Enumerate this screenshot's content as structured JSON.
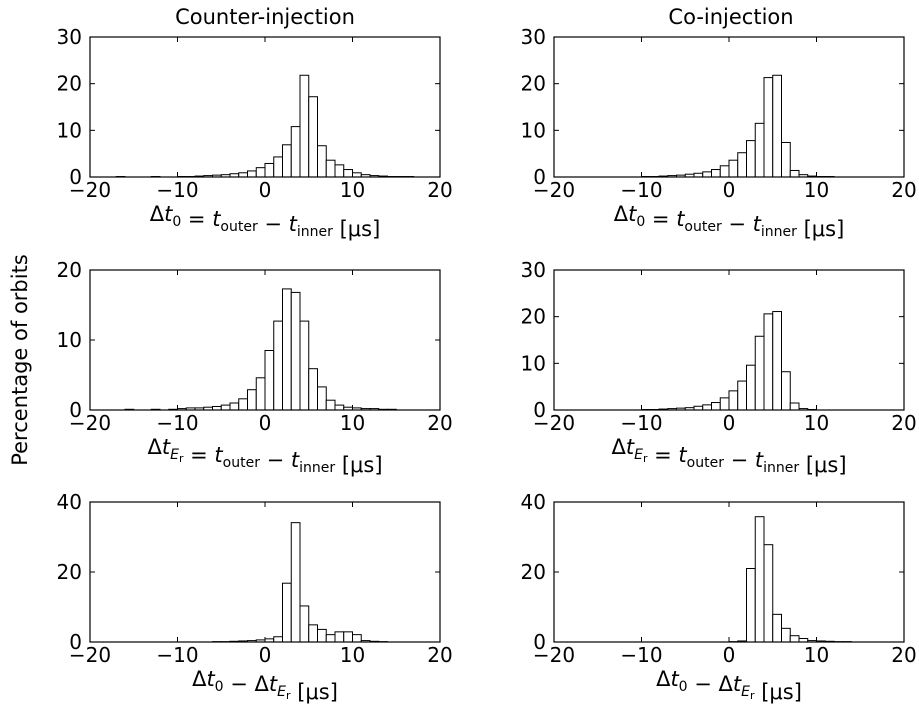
{
  "figure": {
    "ylabel": "Percentage of orbits",
    "col_titles": [
      "Counter-injection",
      "Co-injection"
    ]
  },
  "chart_data": [
    {
      "type": "bar",
      "panel": "row1-left",
      "title": "Counter-injection",
      "xlabel": "Δt0 = touter − tinner [μs]",
      "xlabel_parts": {
        "delta": "Δ",
        "t": "t",
        "t_sub": "0",
        "eq": " = ",
        "t1": "t",
        "t1_sub": "outer",
        "minus": " − ",
        "t2": "t",
        "t2_sub": "inner",
        "unit": " [μs]"
      },
      "xlim": [
        -20,
        20
      ],
      "ylim": [
        0,
        30
      ],
      "xticks": [
        "−20",
        "−10",
        "0",
        "10",
        "20"
      ],
      "yticks": [
        "0",
        "10",
        "20",
        "30"
      ],
      "bin_width": 1,
      "x": [
        -18,
        -17,
        -16,
        -15,
        -14,
        -13,
        -12,
        -11,
        -10,
        -9,
        -8,
        -7,
        -6,
        -5,
        -4,
        -3,
        -2,
        -1,
        0,
        1,
        2,
        3,
        4,
        5,
        6,
        7,
        8,
        9,
        10,
        11,
        12,
        13,
        14,
        15,
        16,
        17,
        18,
        19
      ],
      "values": [
        0,
        0.1,
        0,
        0,
        0,
        0.1,
        0,
        0,
        0.1,
        0.1,
        0.2,
        0.3,
        0.4,
        0.5,
        0.7,
        0.9,
        1.3,
        2,
        2.9,
        4.3,
        6.9,
        10.8,
        21.8,
        17.2,
        6.7,
        3.6,
        2.6,
        1.6,
        0.9,
        0.5,
        0.3,
        0.2,
        0.1,
        0.1,
        0.1,
        0,
        0,
        0
      ]
    },
    {
      "type": "bar",
      "panel": "row1-right",
      "title": "Co-injection",
      "xlabel": "Δt0 = touter − tinner [μs]",
      "xlabel_parts": {
        "delta": "Δ",
        "t": "t",
        "t_sub": "0",
        "eq": " = ",
        "t1": "t",
        "t1_sub": "outer",
        "minus": " − ",
        "t2": "t",
        "t2_sub": "inner",
        "unit": " [μs]"
      },
      "xlim": [
        -20,
        20
      ],
      "ylim": [
        0,
        30
      ],
      "xticks": [
        "−20",
        "−10",
        "0",
        "10",
        "20"
      ],
      "yticks": [
        "0",
        "10",
        "20",
        "30"
      ],
      "bin_width": 1,
      "x": [
        -18,
        -17,
        -16,
        -15,
        -14,
        -13,
        -12,
        -11,
        -10,
        -9,
        -8,
        -7,
        -6,
        -5,
        -4,
        -3,
        -2,
        -1,
        0,
        1,
        2,
        3,
        4,
        5,
        6,
        7,
        8,
        9,
        10,
        11,
        12,
        13,
        14,
        15,
        16,
        17,
        18,
        19
      ],
      "values": [
        0,
        0,
        0,
        0,
        0,
        0,
        0,
        0,
        0.1,
        0.1,
        0.2,
        0.3,
        0.4,
        0.6,
        0.8,
        1.1,
        1.6,
        2.4,
        3.6,
        5.2,
        7.8,
        11.5,
        21.3,
        21.8,
        7.4,
        1.4,
        0.5,
        0.2,
        0.1,
        0.1,
        0,
        0,
        0,
        0,
        0,
        0,
        0,
        0
      ]
    },
    {
      "type": "bar",
      "panel": "row2-left",
      "xlabel": "ΔtEr = touter − tinner [μs]",
      "xlabel_parts": {
        "delta": "Δ",
        "t": "t",
        "t_sub": "E",
        "t_subsub": "r",
        "eq": " = ",
        "t1": "t",
        "t1_sub": "outer",
        "minus": " − ",
        "t2": "t",
        "t2_sub": "inner",
        "unit": " [μs]"
      },
      "xlim": [
        -20,
        20
      ],
      "ylim": [
        0,
        20
      ],
      "xticks": [
        "−20",
        "−10",
        "0",
        "10",
        "20"
      ],
      "yticks": [
        "0",
        "10",
        "20"
      ],
      "bin_width": 1,
      "x": [
        -18,
        -17,
        -16,
        -15,
        -14,
        -13,
        -12,
        -11,
        -10,
        -9,
        -8,
        -7,
        -6,
        -5,
        -4,
        -3,
        -2,
        -1,
        0,
        1,
        2,
        3,
        4,
        5,
        6,
        7,
        8,
        9,
        10,
        11,
        12,
        13,
        14,
        15,
        16,
        17,
        18,
        19
      ],
      "values": [
        0,
        0,
        0.1,
        0,
        0,
        0.1,
        0,
        0.1,
        0.2,
        0.3,
        0.3,
        0.4,
        0.5,
        0.7,
        1,
        1.6,
        2.9,
        4.6,
        8.5,
        12.7,
        17.3,
        16.8,
        12.7,
        5.9,
        3.3,
        1.4,
        0.7,
        0.4,
        0.3,
        0.2,
        0.2,
        0.1,
        0.1,
        0,
        0,
        0,
        0,
        0
      ]
    },
    {
      "type": "bar",
      "panel": "row2-right",
      "xlabel": "ΔtEr = touter − tinner [μs]",
      "xlabel_parts": {
        "delta": "Δ",
        "t": "t",
        "t_sub": "E",
        "t_subsub": "r",
        "eq": " = ",
        "t1": "t",
        "t1_sub": "outer",
        "minus": " − ",
        "t2": "t",
        "t2_sub": "inner",
        "unit": " [μs]"
      },
      "xlim": [
        -20,
        20
      ],
      "ylim": [
        0,
        30
      ],
      "xticks": [
        "−20",
        "−10",
        "0",
        "10",
        "20"
      ],
      "yticks": [
        "0",
        "10",
        "20",
        "30"
      ],
      "bin_width": 1,
      "x": [
        -18,
        -17,
        -16,
        -15,
        -14,
        -13,
        -12,
        -11,
        -10,
        -9,
        -8,
        -7,
        -6,
        -5,
        -4,
        -3,
        -2,
        -1,
        0,
        1,
        2,
        3,
        4,
        5,
        6,
        7,
        8,
        9,
        10,
        11,
        12,
        13,
        14,
        15,
        16,
        17,
        18,
        19
      ],
      "values": [
        0,
        0,
        0,
        0,
        0,
        0,
        0,
        0,
        0.1,
        0.1,
        0.2,
        0.3,
        0.4,
        0.5,
        0.8,
        1.1,
        1.6,
        2.6,
        4.1,
        6.2,
        9.6,
        15.8,
        20.6,
        21.1,
        8.2,
        1.5,
        0.3,
        0.1,
        0,
        0,
        0,
        0,
        0,
        0,
        0,
        0,
        0,
        0
      ]
    },
    {
      "type": "bar",
      "panel": "row3-left",
      "xlabel": "Δt0 − ΔtEr [μs]",
      "xlabel_parts": {
        "delta": "Δ",
        "t": "t",
        "t_sub": "0",
        "minus": " − ",
        "delta2": "Δ",
        "t2": "t",
        "t2_sub": "E",
        "t2_subsub": "r",
        "unit": " [μs]"
      },
      "xlim": [
        -20,
        20
      ],
      "ylim": [
        0,
        40
      ],
      "xticks": [
        "−20",
        "−10",
        "0",
        "10",
        "20"
      ],
      "yticks": [
        "0",
        "20",
        "40"
      ],
      "bin_width": 1,
      "x": [
        -18,
        -17,
        -16,
        -15,
        -14,
        -13,
        -12,
        -11,
        -10,
        -9,
        -8,
        -7,
        -6,
        -5,
        -4,
        -3,
        -2,
        -1,
        0,
        1,
        2,
        3,
        4,
        5,
        6,
        7,
        8,
        9,
        10,
        11,
        12,
        13,
        14,
        15,
        16,
        17,
        18,
        19
      ],
      "values": [
        0,
        0,
        0,
        0,
        0,
        0,
        0,
        0,
        0,
        0,
        0,
        0,
        0.1,
        0.1,
        0.2,
        0.3,
        0.4,
        0.6,
        0.9,
        1.5,
        16.8,
        34.1,
        10.3,
        4.9,
        3.6,
        2.1,
        2.9,
        2.9,
        2.1,
        0.4,
        0.2,
        0.1,
        0,
        0,
        0,
        0,
        0,
        0
      ]
    },
    {
      "type": "bar",
      "panel": "row3-right",
      "xlabel": "Δt0 − ΔtEr [μs]",
      "xlabel_parts": {
        "delta": "Δ",
        "t": "t",
        "t_sub": "0",
        "minus": " − ",
        "delta2": "Δ",
        "t2": "t",
        "t2_sub": "E",
        "t2_subsub": "r",
        "unit": " [μs]"
      },
      "xlim": [
        -20,
        20
      ],
      "ylim": [
        0,
        40
      ],
      "xticks": [
        "−20",
        "−10",
        "0",
        "10",
        "20"
      ],
      "yticks": [
        "0",
        "20",
        "40"
      ],
      "bin_width": 1,
      "x": [
        -18,
        -17,
        -16,
        -15,
        -14,
        -13,
        -12,
        -11,
        -10,
        -9,
        -8,
        -7,
        -6,
        -5,
        -4,
        -3,
        -2,
        -1,
        0,
        1,
        2,
        3,
        4,
        5,
        6,
        7,
        8,
        9,
        10,
        11,
        12,
        13,
        14,
        15,
        16,
        17,
        18,
        19
      ],
      "values": [
        0,
        0,
        0,
        0,
        0,
        0,
        0,
        0,
        0,
        0,
        0,
        0,
        0,
        0,
        0,
        0,
        0,
        0,
        0.1,
        0.3,
        21,
        35.8,
        27.8,
        7.9,
        3.9,
        1.8,
        1,
        0.4,
        0.3,
        0.2,
        0.1,
        0.1,
        0,
        0,
        0,
        0,
        0,
        0
      ]
    }
  ]
}
